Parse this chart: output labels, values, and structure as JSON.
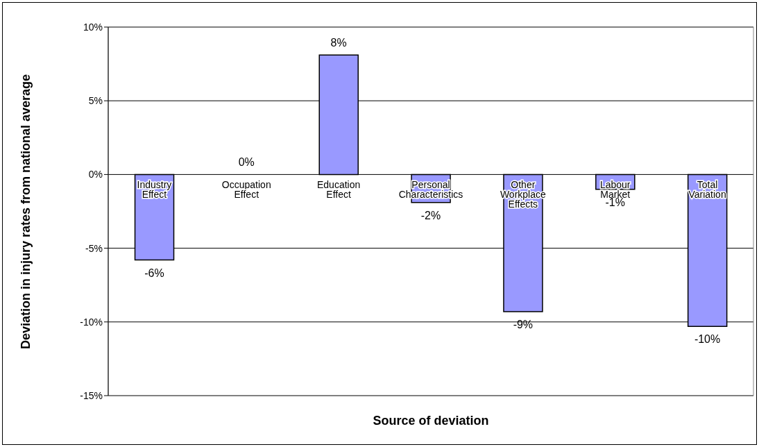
{
  "chart_data": {
    "type": "bar",
    "xlabel": "Source of deviation",
    "ylabel": "Deviation in injury rates from national average",
    "categories": [
      "Industry Effect",
      "Occupation Effect",
      "Education Effect",
      "Personal Characteristics",
      "Other Workplace Effects",
      "Labour Market",
      "Total Variation"
    ],
    "values": [
      -5.8,
      0,
      8.1,
      -1.9,
      -9.3,
      -1.0,
      -10.3
    ],
    "value_labels": [
      "-6%",
      "0%",
      "8%",
      "-2%",
      "-9%",
      "-1%",
      "-10%"
    ],
    "color": "#9999ff",
    "ylim": [
      -15,
      10
    ],
    "yticks": [
      {
        "value": -15,
        "label": "-15%"
      },
      {
        "value": -10,
        "label": "-10%"
      },
      {
        "value": -5,
        "label": "-5%"
      },
      {
        "value": 0,
        "label": "0%"
      },
      {
        "value": 5,
        "label": "5%"
      },
      {
        "value": 10,
        "label": "10%"
      }
    ],
    "grid": "y"
  }
}
